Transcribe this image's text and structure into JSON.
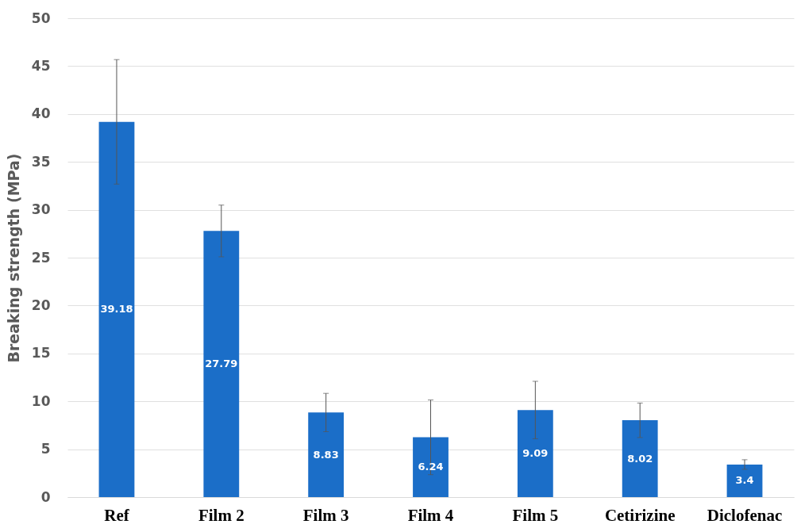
{
  "chart_data": {
    "type": "bar",
    "ylabel": "Breaking strength (MPa)",
    "categories": [
      "Ref",
      "Film 2",
      "Film 3",
      "Film 4",
      "Film 5",
      "Cetirizine",
      "Diclofenac"
    ],
    "values": [
      39.18,
      27.79,
      8.83,
      6.24,
      9.09,
      8.02,
      3.4
    ],
    "errors": [
      6.5,
      2.7,
      2,
      3.9,
      3,
      1.8,
      0.5
    ],
    "color": "#1b6ec8",
    "ylim": [
      0,
      50
    ],
    "yticks": [
      0,
      5,
      10,
      15,
      20,
      25,
      30,
      35,
      40,
      45,
      50
    ],
    "grid": "y",
    "data_labels": true
  }
}
